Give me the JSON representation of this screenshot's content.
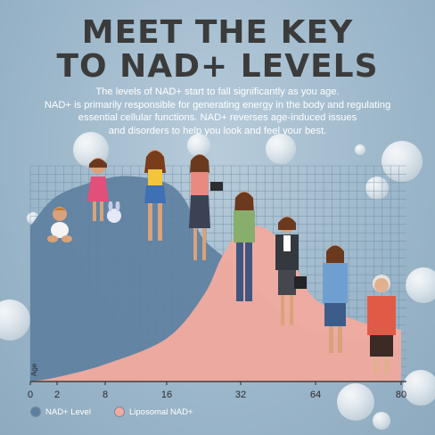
{
  "header": {
    "title_line1": "MEET THE KEY",
    "title_line2": "TO NAD+ LEVELS",
    "description": [
      "The levels of NAD+ start to fall significantly as you age.",
      "NAD+ is primarily responsible for generating energy in the body and regulating",
      "essential cellular functions. NAD+ reverses age-induced issues",
      "and disorders to help you look and feel your best."
    ]
  },
  "chart_data": {
    "type": "area",
    "xlabel": "Age",
    "ticks": [
      {
        "label": "0",
        "value": 0
      },
      {
        "label": "2",
        "value": 2
      },
      {
        "label": "8",
        "value": 8
      },
      {
        "label": "16",
        "value": 16
      },
      {
        "label": "32",
        "value": 32
      },
      {
        "label": "64",
        "value": 64
      },
      {
        "label": "80",
        "value": 80
      }
    ],
    "xlim": [
      0,
      80
    ],
    "ylim": [
      0,
      100
    ],
    "grid": true,
    "legend_position": "bottom-left",
    "series": [
      {
        "name": "NAD+ Level",
        "color": "#5e80a0",
        "points": [
          [
            0,
            72
          ],
          [
            2,
            86
          ],
          [
            8,
            94
          ],
          [
            12,
            95
          ],
          [
            16,
            92
          ],
          [
            20,
            84
          ],
          [
            24,
            66
          ],
          [
            32,
            52
          ],
          [
            40,
            42
          ],
          [
            48,
            34
          ],
          [
            56,
            28
          ],
          [
            64,
            23
          ],
          [
            72,
            19
          ],
          [
            80,
            16
          ]
        ]
      },
      {
        "name": "Liposomal NAD+",
        "color": "#f0aaa0",
        "points": [
          [
            0,
            0
          ],
          [
            2,
            2
          ],
          [
            8,
            8
          ],
          [
            16,
            20
          ],
          [
            24,
            40
          ],
          [
            28,
            58
          ],
          [
            32,
            70
          ],
          [
            40,
            72
          ],
          [
            48,
            66
          ],
          [
            56,
            52
          ],
          [
            64,
            38
          ],
          [
            72,
            28
          ],
          [
            80,
            24
          ]
        ]
      }
    ]
  }
}
